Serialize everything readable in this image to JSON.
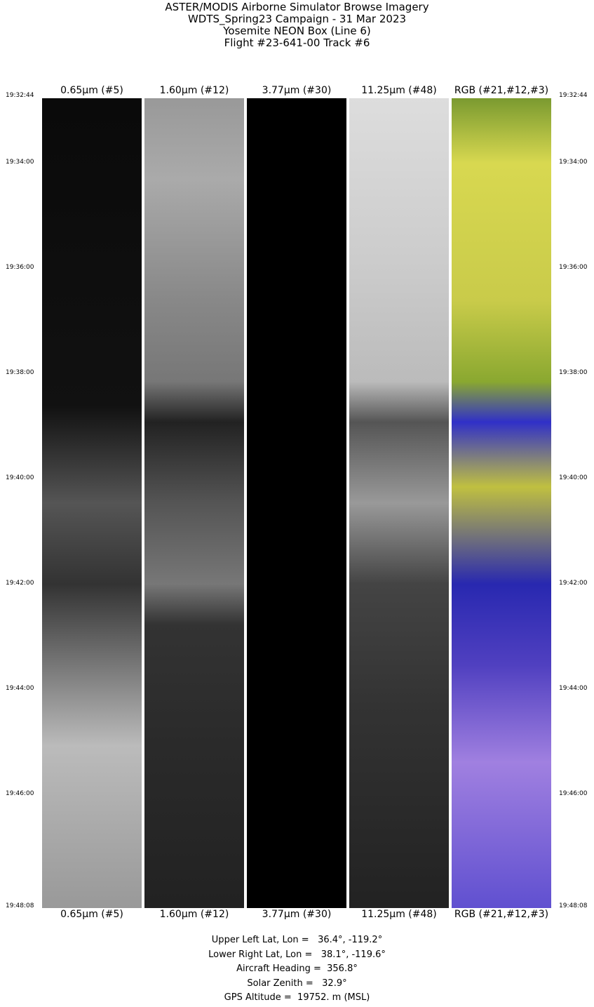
{
  "title": [
    "ASTER/MODIS Airborne Simulator Browse Imagery",
    "WDTS_Spring23 Campaign - 31 Mar 2023",
    "Yosemite NEON Box (Line 6)",
    "Flight #23-641-00 Track #6"
  ],
  "bands": [
    "0.65µm (#5)",
    "1.60µm (#12)",
    "3.77µm (#30)",
    "11.25µm (#48)",
    "RGB (#21,#12,#3)"
  ],
  "times": [
    "19:32:44",
    "19:34:00",
    "19:36:00",
    "19:38:00",
    "19:40:00",
    "19:42:00",
    "19:44:00",
    "19:46:00",
    "19:48:08"
  ],
  "info": [
    "Upper Left Lat, Lon =   36.4°, -119.2°",
    "Lower Right Lat, Lon =   38.1°, -119.6°",
    "Aircraft Heading =  356.8°",
    "Solar Zenith =   32.9°",
    "GPS Altitude =  19752. m (MSL)"
  ]
}
